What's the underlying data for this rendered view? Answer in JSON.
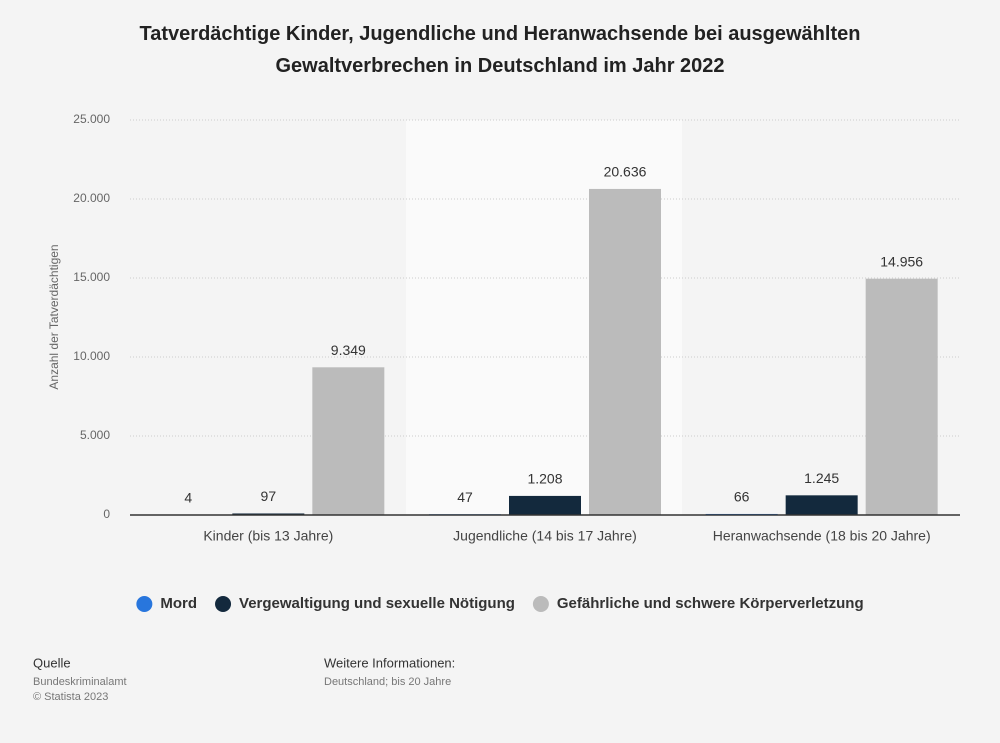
{
  "chart_data": {
    "type": "bar",
    "title": "Tatverdächtige Kinder, Jugendliche und Heranwachsende bei ausgewählten Gewaltverbrechen in Deutschland im Jahr 2022",
    "y_label": "Anzahl der Tatverdächtigen",
    "categories": [
      "Kinder (bis 13 Jahre)",
      "Jugendliche (14 bis 17 Jahre)",
      "Heranwachsende (18 bis 20 Jahre)"
    ],
    "series": [
      {
        "name": "Mord",
        "color": "#2876dd",
        "values": [
          4,
          47,
          66
        ],
        "value_labels": [
          "4",
          "47",
          "66"
        ]
      },
      {
        "name": "Vergewaltigung und sexuelle Nötigung",
        "color": "#13293d",
        "values": [
          97,
          1208,
          1245
        ],
        "value_labels": [
          "97",
          "1.208",
          "1.245"
        ]
      },
      {
        "name": "Gefährliche und schwere Körperverletzung",
        "color": "#bbbbbb",
        "values": [
          9349,
          20636,
          14956
        ],
        "value_labels": [
          "9.349",
          "20.636",
          "14.956"
        ]
      }
    ],
    "ylim": [
      0,
      25000
    ],
    "yticks": [
      0,
      {
        "value": 5000,
        "label": "5.000"
      },
      {
        "value": 10000,
        "label": "10.000"
      },
      {
        "value": 15000,
        "label": "15.000"
      },
      {
        "value": 20000,
        "label": "20.000"
      },
      {
        "value": 25000,
        "label": "25.000"
      }
    ],
    "grid": true,
    "legend": "bottom"
  },
  "footer": {
    "source_title": "Quelle",
    "source": "Bundeskriminalamt",
    "copyright": "© Statista 2023",
    "info_title": "Weitere Informationen:",
    "info": "Deutschland; bis 20 Jahre"
  }
}
